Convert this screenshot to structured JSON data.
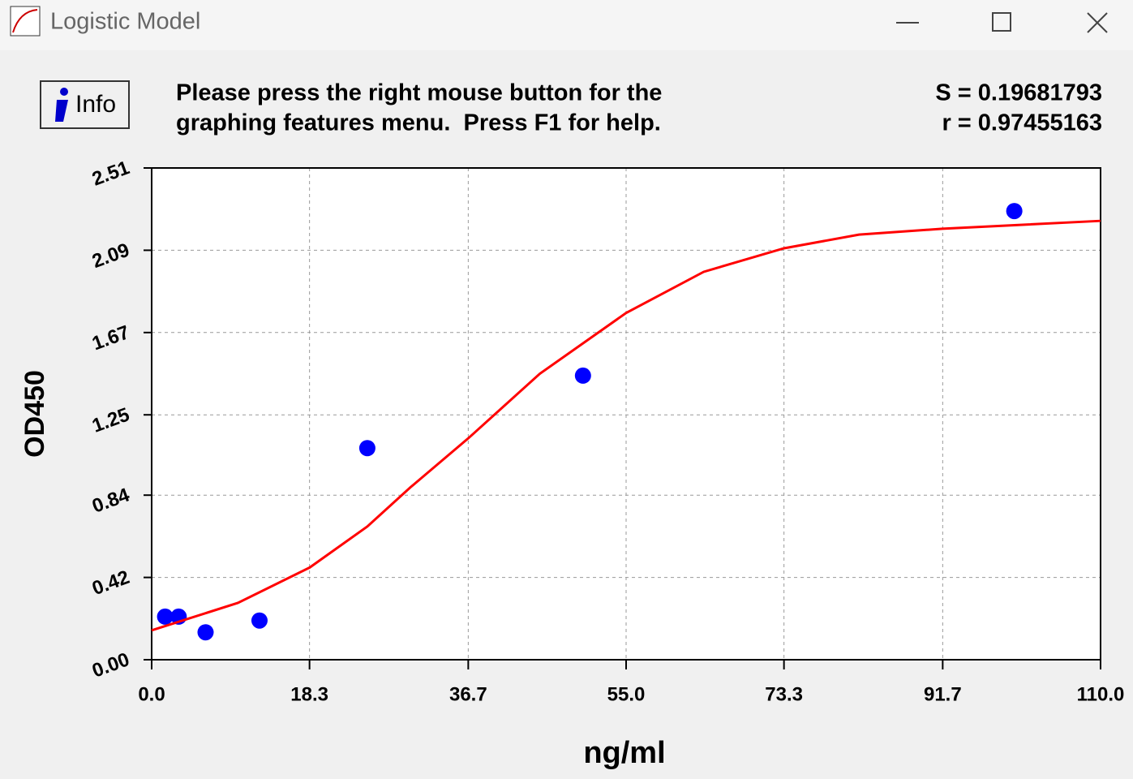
{
  "window_title": "Logistic Model",
  "info_button": "Info",
  "help_text": [
    "Please press the right mouse button for the",
    "graphing features menu.  Press F1 for help."
  ],
  "stats": [
    "S = 0.19681793",
    "r = 0.97455163"
  ],
  "chart_data": {
    "type": "scatter",
    "x_label": "ng/ml",
    "y_label": "OD450",
    "xlim": [
      0,
      110
    ],
    "ylim": [
      0,
      2.51
    ],
    "xticks": [
      {
        "value": 0,
        "label": "0.0"
      },
      18.3,
      36.7,
      {
        "value": 55,
        "label": "55.0"
      },
      73.3,
      91.7,
      {
        "value": 110,
        "label": "110.0"
      }
    ],
    "yticks": [
      {
        "value": 0,
        "label": "0.00"
      },
      0.42,
      0.84,
      1.25,
      1.67,
      2.09,
      2.51
    ],
    "grid": true,
    "series": [
      {
        "type": "scatter",
        "color": "#0000ff",
        "x": [
          1.56,
          3.13,
          6.25,
          12.5,
          25,
          50,
          100
        ],
        "values": [
          0.22,
          0.22,
          0.14,
          0.2,
          1.08,
          1.45,
          2.29
        ]
      },
      {
        "type": "line",
        "color": "#ff0000",
        "x": [
          0,
          10,
          18.3,
          25,
          30,
          36.7,
          45,
          55,
          64,
          73.3,
          82,
          91.7,
          110
        ],
        "values": [
          0.15,
          0.29,
          0.47,
          0.68,
          0.88,
          1.13,
          1.46,
          1.77,
          1.98,
          2.1,
          2.17,
          2.2,
          2.24
        ]
      }
    ]
  }
}
